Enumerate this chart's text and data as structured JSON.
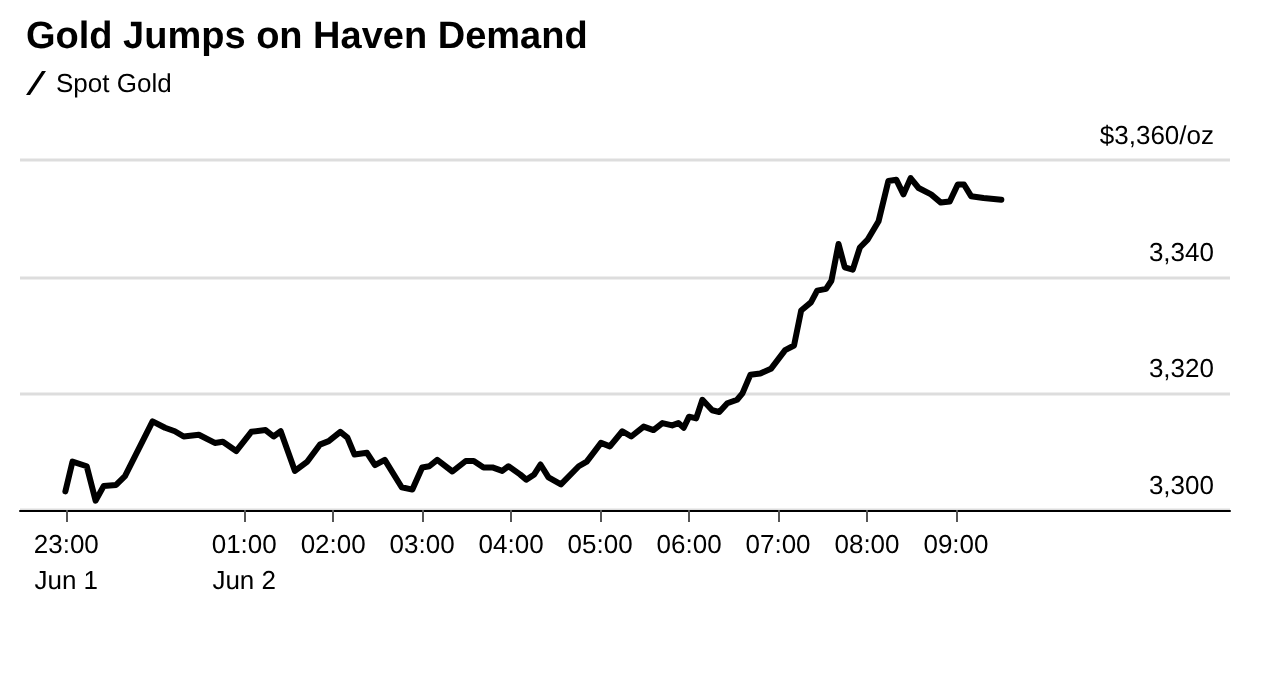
{
  "chart_data": {
    "type": "line",
    "title": "Gold Jumps on Haven Demand",
    "x": [
      -1.01,
      -0.93,
      -0.77,
      -0.67,
      -0.58,
      -0.44,
      -0.34,
      -0.03,
      0.11,
      0.22,
      0.32,
      0.49,
      0.67,
      0.76,
      0.91,
      1.08,
      1.24,
      1.33,
      1.41,
      1.57,
      1.71,
      1.85,
      1.95,
      2.08,
      2.16,
      2.24,
      2.38,
      2.47,
      2.58,
      2.77,
      2.89,
      3.0,
      3.08,
      3.17,
      3.34,
      3.49,
      3.58,
      3.69,
      3.79,
      3.9,
      3.97,
      4.1,
      4.17,
      4.26,
      4.33,
      4.42,
      4.56,
      4.76,
      4.85,
      4.94,
      5.01,
      5.11,
      5.25,
      5.35,
      5.49,
      5.6,
      5.7,
      5.81,
      5.88,
      5.94,
      6.0,
      6.08,
      6.15,
      6.26,
      6.34,
      6.43,
      6.54,
      6.6,
      6.69,
      6.8,
      6.92,
      7.08,
      7.18,
      7.26,
      7.37,
      7.44,
      7.54,
      7.6,
      7.68,
      7.75,
      7.84,
      7.92,
      8.01,
      8.13,
      8.24,
      8.33,
      8.41,
      8.49,
      8.58,
      8.72,
      8.83,
      8.93,
      9.02,
      9.09,
      9.17,
      9.31,
      9.51
    ],
    "series": [
      {
        "name": "Spot Gold",
        "color": "#000000",
        "values": [
          3303.2,
          3308.3,
          3307.5,
          3301.6,
          3304.1,
          3304.3,
          3305.8,
          3315.2,
          3314.1,
          3313.5,
          3312.6,
          3312.9,
          3311.5,
          3311.7,
          3310.1,
          3313.4,
          3313.7,
          3312.6,
          3313.5,
          3306.7,
          3308.3,
          3311.2,
          3311.8,
          3313.4,
          3312.4,
          3309.5,
          3309.8,
          3307.7,
          3308.6,
          3303.9,
          3303.5,
          3307.3,
          3307.5,
          3308.6,
          3306.6,
          3308.4,
          3308.4,
          3307.3,
          3307.3,
          3306.7,
          3307.5,
          3306.1,
          3305.2,
          3306.1,
          3307.8,
          3305.6,
          3304.4,
          3307.5,
          3308.3,
          3310.1,
          3311.5,
          3310.9,
          3313.5,
          3312.6,
          3314.3,
          3313.7,
          3314.9,
          3314.5,
          3314.9,
          3314.1,
          3316.0,
          3315.7,
          3318.9,
          3317.1,
          3316.8,
          3318.3,
          3318.9,
          3320.0,
          3323.2,
          3323.4,
          3324.2,
          3327.4,
          3328.2,
          3334.2,
          3335.6,
          3337.6,
          3337.9,
          3339.3,
          3345.6,
          3341.6,
          3341.2,
          3345.0,
          3346.4,
          3349.5,
          3356.4,
          3356.6,
          3354.1,
          3356.9,
          3355.2,
          3354.1,
          3352.7,
          3352.9,
          3355.8,
          3355.8,
          3353.8,
          3353.5,
          3353.2
        ]
      }
    ],
    "xlim": [
      -1.52,
      12.08
    ],
    "xticks": [
      {
        "value": -1,
        "label": "23:00\nJun 1"
      },
      {
        "value": 1,
        "label": "01:00\nJun 2"
      },
      {
        "value": 2,
        "label": "02:00"
      },
      {
        "value": 3,
        "label": "03:00"
      },
      {
        "value": 4,
        "label": "04:00"
      },
      {
        "value": 5,
        "label": "05:00"
      },
      {
        "value": 6,
        "label": "06:00"
      },
      {
        "value": 7,
        "label": "07:00"
      },
      {
        "value": 8,
        "label": "08:00"
      },
      {
        "value": 9,
        "label": "09:00"
      }
    ],
    "ylim": [
      3300,
      3360
    ],
    "yticks": [
      {
        "value": 3300,
        "label": "3,300"
      },
      {
        "value": 3320,
        "label": "3,320"
      },
      {
        "value": 3340,
        "label": "3,340"
      },
      {
        "value": 3360,
        "label": "$3,360/oz"
      }
    ],
    "grid": "y",
    "legend": "top left",
    "marker": "none",
    "line_style": "solid"
  }
}
